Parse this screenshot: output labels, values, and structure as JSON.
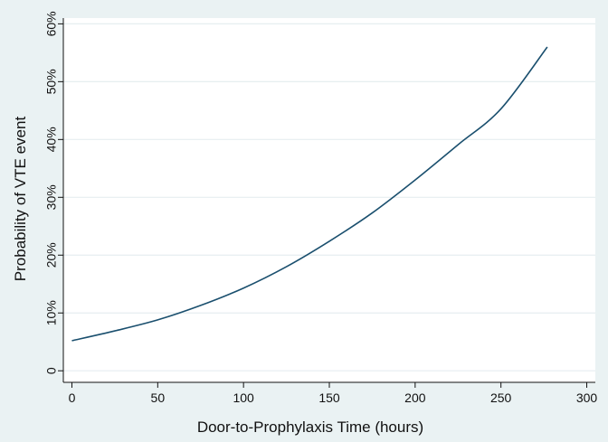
{
  "chart_data": {
    "type": "line",
    "title": "",
    "xlabel": "Door-to-Prophylaxis Time (hours)",
    "ylabel": "Probability of VTE event",
    "xlim": [
      -5,
      305
    ],
    "ylim": [
      -0.02,
      0.61
    ],
    "x_ticks": [
      0,
      50,
      100,
      150,
      200,
      250,
      300
    ],
    "x_tick_labels": [
      "0",
      "50",
      "100",
      "150",
      "200",
      "250",
      "300"
    ],
    "y_ticks": [
      0,
      0.1,
      0.2,
      0.3,
      0.4,
      0.5,
      0.6
    ],
    "y_tick_labels": [
      "0",
      "10%",
      "20%",
      "30%",
      "40%",
      "50%",
      "60%"
    ],
    "grid": "horizontal",
    "colors": {
      "background": "#eaf2f3",
      "plot_area": "#ffffff",
      "line": "#1a4f6e",
      "grid": "#e6eef0",
      "axis": "#111111"
    },
    "series": [
      {
        "x": [
          0,
          25,
          50,
          75,
          100,
          125,
          150,
          175,
          200,
          225,
          250,
          277
        ],
        "values": [
          0.052,
          0.069,
          0.088,
          0.113,
          0.143,
          0.18,
          0.224,
          0.273,
          0.33,
          0.391,
          0.453,
          0.56
        ]
      }
    ]
  }
}
